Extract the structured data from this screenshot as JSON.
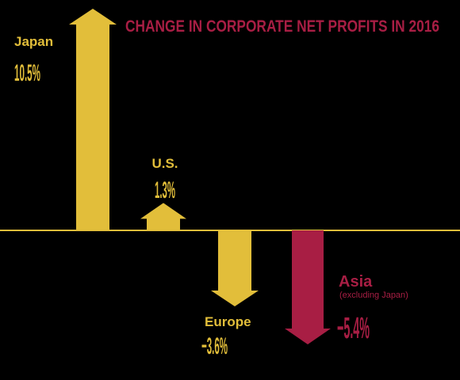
{
  "chart_data": {
    "type": "bar",
    "title": "CHANGE IN CORPORATE NET PROFITS IN 2016",
    "xlabel": "",
    "ylabel": "",
    "categories": [
      "Japan",
      "U.S.",
      "Europe",
      "Asia"
    ],
    "sublabels": [
      "",
      "",
      "",
      "(excluding Japan)"
    ],
    "values": [
      10.5,
      1.3,
      -3.6,
      -5.4
    ],
    "value_labels": [
      "10.5%",
      "1.3%",
      "−3.6%",
      "−5.4%"
    ],
    "colors": [
      "#E2BE3A",
      "#E2BE3A",
      "#E2BE3A",
      "#A81E44"
    ],
    "grid": false,
    "legend": "none"
  },
  "colors": {
    "background": "#000000",
    "baseline": "#E2BE3A",
    "title": "#A81E44"
  }
}
